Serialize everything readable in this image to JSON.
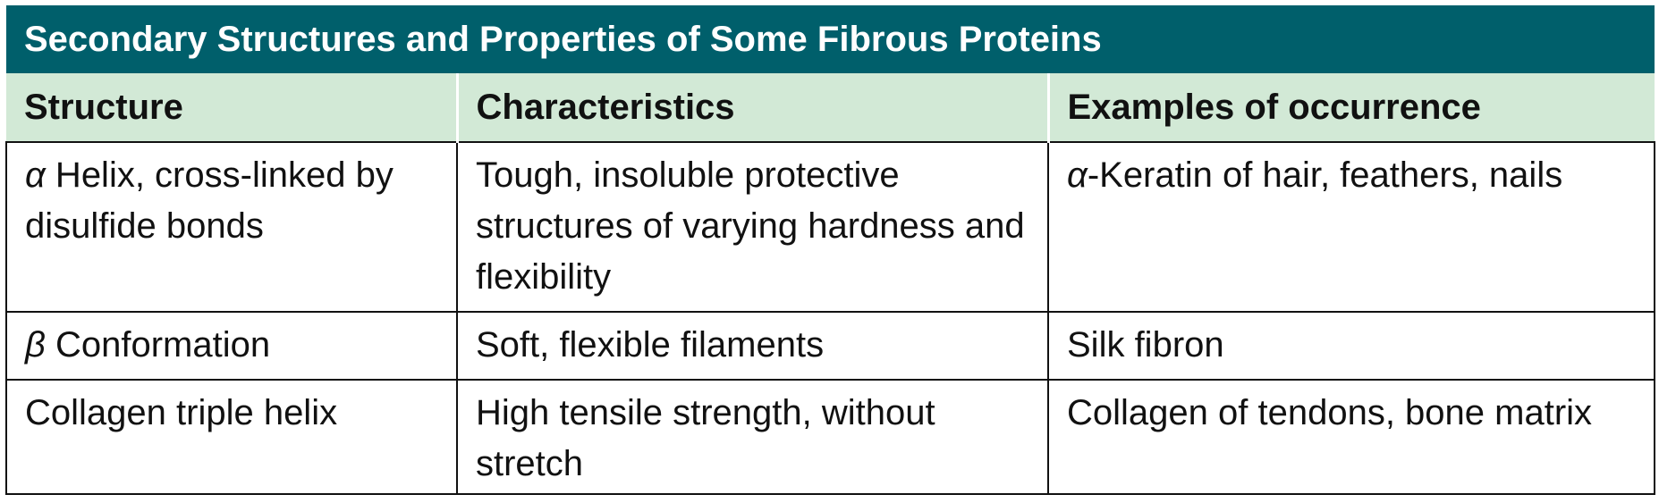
{
  "title": "Secondary Structures and Properties of Some Fibrous Proteins",
  "headers": [
    "Structure",
    "Characteristics",
    "Examples of occurrence"
  ],
  "rows": [
    {
      "structure_symbol": "α",
      "structure_text": " Helix, cross-linked by disulfide bonds",
      "characteristics": "Tough, insoluble protective structures of varying hardness and flexibility",
      "examples_symbol": "α",
      "examples_text": "-Keratin of hair, feathers, nails"
    },
    {
      "structure_symbol": "β",
      "structure_text": " Conformation",
      "characteristics": "Soft, flexible filaments",
      "examples_symbol": "",
      "examples_text": "Silk fibron"
    },
    {
      "structure_symbol": "",
      "structure_text": "Collagen triple helix",
      "characteristics": "High tensile strength, without stretch",
      "examples_symbol": "",
      "examples_text": "Collagen of tendons, bone matrix"
    }
  ],
  "colors": {
    "title_bg": "#005f6b",
    "header_bg": "#d2e9d6"
  }
}
